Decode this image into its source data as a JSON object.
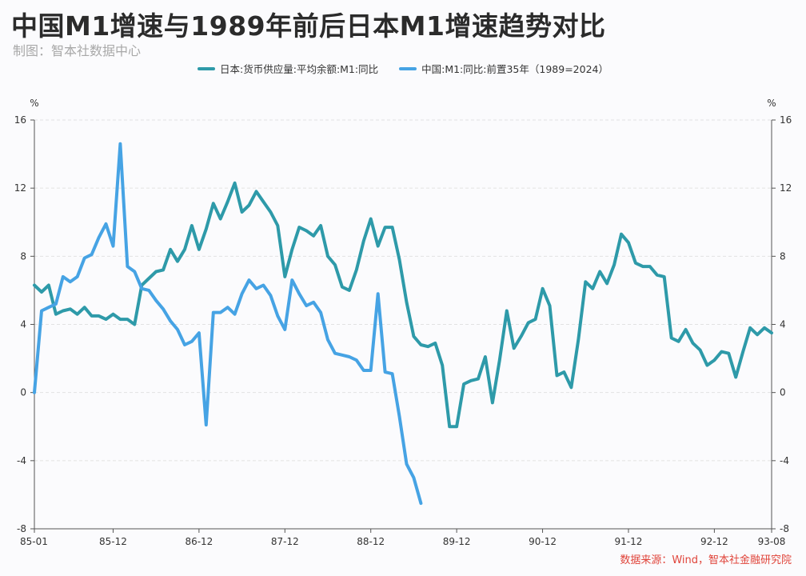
{
  "header": {
    "title": "中国M1增速与1989年前后日本M1增速趋势对比",
    "subtitle": "制图：智本社数据中心"
  },
  "footer": {
    "source": "数据来源：Wind，智本社金融研究院"
  },
  "colors": {
    "japan": "#2e9aa9",
    "china": "#46a3e4",
    "axis": "#555555",
    "grid": "#e2e2e2"
  },
  "chart_data": {
    "type": "line",
    "title": "中国M1增速与1989年前后日本M1增速趋势对比",
    "y_unit_left": "%",
    "y_unit_right": "%",
    "ylim": [
      -8,
      16
    ],
    "yticks": [
      -8,
      -4,
      0,
      4,
      8,
      12,
      16
    ],
    "x_range_months": [
      "1985-01",
      "1993-08"
    ],
    "x_tick_labels": [
      "85-01",
      "85-12",
      "86-12",
      "87-12",
      "88-12",
      "89-12",
      "90-12",
      "91-12",
      "92-12",
      "93-08"
    ],
    "x_tick_months": [
      "1985-01",
      "1985-12",
      "1986-12",
      "1987-12",
      "1988-12",
      "1989-12",
      "1990-12",
      "1991-12",
      "1992-12",
      "1993-08"
    ],
    "grid": true,
    "legend_position": "top-center",
    "series": [
      {
        "name": "日本:货币供应量:平均余额:M1:同比",
        "color": "#2e9aa9",
        "start": "1985-01",
        "values": [
          6.3,
          5.9,
          6.3,
          4.6,
          4.8,
          4.9,
          4.6,
          5.0,
          4.5,
          4.5,
          4.3,
          4.6,
          4.3,
          4.3,
          4.0,
          6.3,
          6.7,
          7.1,
          7.2,
          8.4,
          7.7,
          8.4,
          9.8,
          8.4,
          9.6,
          11.1,
          10.2,
          11.2,
          12.3,
          10.6,
          11.0,
          11.8,
          11.2,
          10.6,
          9.8,
          6.8,
          8.4,
          9.7,
          9.5,
          9.2,
          9.8,
          8.0,
          7.5,
          6.2,
          6.0,
          7.2,
          8.9,
          10.2,
          8.6,
          9.7,
          9.7,
          7.8,
          5.3,
          3.3,
          2.8,
          2.7,
          2.9,
          1.6,
          -2.0,
          -2.0,
          0.5,
          0.7,
          0.8,
          2.1,
          -0.6,
          1.9,
          4.8,
          2.6,
          3.3,
          4.1,
          4.3,
          6.1,
          5.1,
          1.0,
          1.2,
          0.3,
          3.1,
          6.5,
          6.1,
          7.1,
          6.4,
          7.5,
          9.3,
          8.8,
          7.6,
          7.4,
          7.4,
          6.9,
          6.8,
          3.2,
          3.0,
          3.7,
          2.9,
          2.5,
          1.6,
          1.9,
          2.4,
          2.3,
          0.9,
          2.4,
          3.8,
          3.4,
          3.8,
          3.5
        ]
      },
      {
        "name": "中国:M1:同比:前置35年（1989=2024）",
        "color": "#46a3e4",
        "start": "1985-01",
        "values": [
          0.0,
          4.8,
          5.0,
          5.2,
          6.8,
          6.5,
          6.8,
          7.9,
          8.1,
          9.1,
          9.9,
          8.6,
          14.6,
          7.4,
          7.1,
          6.1,
          6.0,
          5.4,
          4.9,
          4.2,
          3.7,
          2.8,
          3.0,
          3.5,
          -1.9,
          4.7,
          4.7,
          5.0,
          4.6,
          5.8,
          6.6,
          6.1,
          6.3,
          5.7,
          4.5,
          3.7,
          6.6,
          5.8,
          5.1,
          5.3,
          4.7,
          3.1,
          2.3,
          2.2,
          2.1,
          1.9,
          1.3,
          1.3,
          5.8,
          1.2,
          1.1,
          -1.4,
          -4.2,
          -5.0,
          -6.5
        ]
      }
    ]
  }
}
